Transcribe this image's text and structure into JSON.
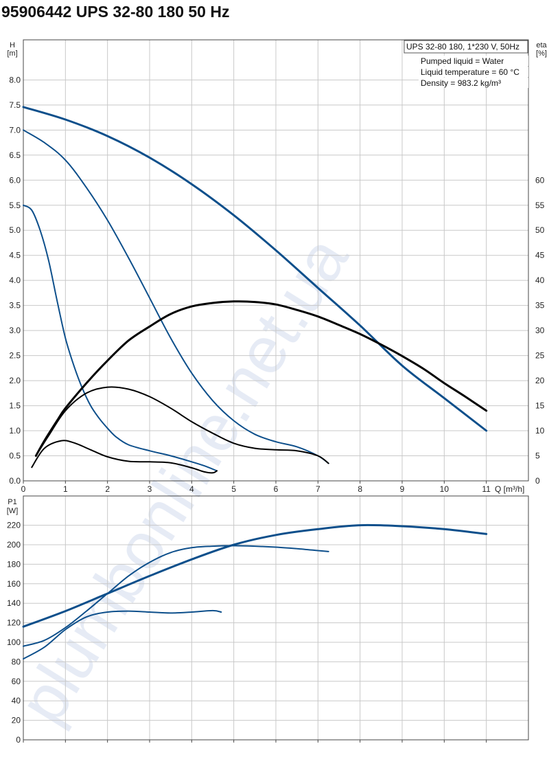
{
  "page_title": "95906442 UPS 32-80 180 50 Hz",
  "watermark": "plumbonline.net.ua",
  "info_box": {
    "model": "UPS 32-80 180, 1*230 V, 50Hz",
    "lines": [
      "Pumped liquid = Water",
      "Liquid temperature = 60 °C",
      "Density = 983.2 kg/m³"
    ]
  },
  "colors": {
    "pump_curve": "#0d4f8b",
    "efficiency_curve": "#000000",
    "grid": "#c8c8c8"
  },
  "chart_data": [
    {
      "type": "line",
      "xlabel": "Q [m³/h]",
      "ylabel": [
        "H",
        "[m]"
      ],
      "y2label": [
        "eta",
        "[%]"
      ],
      "xlim": [
        0,
        12
      ],
      "ylim": [
        0,
        8.8
      ],
      "y2lim": [
        0,
        88
      ],
      "x_ticks": [
        0,
        1,
        2,
        3,
        4,
        5,
        6,
        7,
        8,
        9,
        10,
        11
      ],
      "y_ticks": [
        "0.0",
        "0.5",
        "1.0",
        "1.5",
        "2.0",
        "2.5",
        "3.0",
        "3.5",
        "4.0",
        "4.5",
        "5.0",
        "5.5",
        "6.0",
        "6.5",
        "7.0",
        "7.5",
        "8.0"
      ],
      "y2_ticks": [
        "0",
        "5",
        "10",
        "15",
        "20",
        "25",
        "30",
        "35",
        "40",
        "45",
        "50",
        "55",
        "60"
      ],
      "grid": true,
      "series": [
        {
          "axis": "left",
          "role": "head",
          "width": 3,
          "x": [
            0,
            1,
            2,
            3,
            4,
            5,
            6,
            7,
            8,
            9,
            10,
            11
          ],
          "y": [
            7.46,
            7.21,
            6.88,
            6.45,
            5.92,
            5.3,
            4.6,
            3.85,
            3.1,
            2.3,
            1.65,
            1.0
          ]
        },
        {
          "axis": "left",
          "role": "head",
          "width": 2,
          "x": [
            0,
            0.5,
            1,
            1.5,
            2,
            2.5,
            3,
            3.5,
            4,
            4.5,
            5,
            5.5,
            6,
            6.5,
            7,
            7.25
          ],
          "y": [
            7.0,
            6.75,
            6.4,
            5.85,
            5.2,
            4.45,
            3.65,
            2.85,
            2.15,
            1.6,
            1.2,
            0.93,
            0.78,
            0.68,
            0.5,
            0.35
          ]
        },
        {
          "axis": "left",
          "role": "head",
          "width": 2,
          "x": [
            0,
            0.2,
            0.4,
            0.6,
            0.8,
            1,
            1.2,
            1.4,
            1.6,
            1.8,
            2,
            2.2,
            2.5,
            3,
            3.5,
            4,
            4.3,
            4.6
          ],
          "y": [
            5.5,
            5.4,
            5.0,
            4.4,
            3.6,
            2.85,
            2.3,
            1.85,
            1.5,
            1.25,
            1.05,
            0.88,
            0.72,
            0.6,
            0.5,
            0.38,
            0.3,
            0.2
          ]
        },
        {
          "axis": "right",
          "role": "efficiency",
          "width": 3,
          "x": [
            0.3,
            0.5,
            0.8,
            1,
            1.5,
            2,
            2.5,
            3,
            3.5,
            4,
            4.5,
            5,
            5.5,
            6,
            6.5,
            7,
            7.5,
            8,
            8.5,
            9,
            9.5,
            10,
            10.5,
            11
          ],
          "y": [
            5,
            8,
            12,
            14.5,
            19.5,
            24,
            28,
            30.8,
            33.3,
            34.8,
            35.5,
            35.8,
            35.7,
            35.2,
            34.1,
            32.8,
            31.1,
            29.3,
            27.2,
            24.9,
            22.4,
            19.5,
            16.8,
            14
          ]
        },
        {
          "axis": "right",
          "role": "efficiency",
          "width": 2,
          "x": [
            0.3,
            0.6,
            1,
            1.5,
            2,
            2.5,
            3,
            3.5,
            4,
            4.5,
            5,
            5.5,
            6,
            6.5,
            7,
            7.25
          ],
          "y": [
            5,
            9,
            14,
            17.5,
            18.7,
            18.3,
            16.8,
            14.5,
            11.8,
            9.5,
            7.5,
            6.5,
            6.2,
            6.0,
            5.0,
            3.5
          ]
        },
        {
          "axis": "right",
          "role": "efficiency",
          "width": 2,
          "x": [
            0.2,
            0.5,
            0.9,
            1.2,
            1.6,
            2,
            2.5,
            3,
            3.5,
            4,
            4.3,
            4.5,
            4.6
          ],
          "y": [
            2.7,
            6.5,
            8.0,
            7.6,
            6.2,
            4.8,
            3.9,
            3.8,
            3.6,
            2.6,
            1.8,
            1.6,
            2.0
          ]
        }
      ]
    },
    {
      "type": "line",
      "xlabel": "",
      "ylabel": [
        "P1",
        "[W]"
      ],
      "xlim": [
        0,
        12
      ],
      "ylim": [
        0,
        250
      ],
      "y_ticks": [
        "0",
        "20",
        "40",
        "60",
        "80",
        "100",
        "120",
        "140",
        "160",
        "180",
        "200",
        "220"
      ],
      "grid": true,
      "series": [
        {
          "role": "power",
          "width": 3,
          "x": [
            0,
            1,
            2,
            3,
            4,
            5,
            6,
            7,
            8,
            9,
            10,
            11
          ],
          "y": [
            116,
            132,
            150,
            168,
            185,
            200,
            210,
            216,
            220,
            219,
            216,
            211
          ]
        },
        {
          "role": "power",
          "width": 2,
          "x": [
            0,
            0.5,
            1,
            1.5,
            2,
            2.5,
            3,
            3.5,
            4,
            4.5,
            5,
            5.5,
            6,
            6.5,
            7,
            7.25
          ],
          "y": [
            96,
            102,
            115,
            132,
            150,
            168,
            182,
            192,
            197,
            198.5,
            199,
            198.5,
            197.5,
            196,
            194,
            193
          ]
        },
        {
          "role": "power",
          "width": 2,
          "x": [
            0,
            0.5,
            1,
            1.5,
            2,
            2.5,
            3,
            3.5,
            4,
            4.5,
            4.7
          ],
          "y": [
            83,
            95,
            113,
            126,
            131,
            132,
            131,
            130,
            131,
            132.5,
            131
          ]
        }
      ]
    }
  ]
}
